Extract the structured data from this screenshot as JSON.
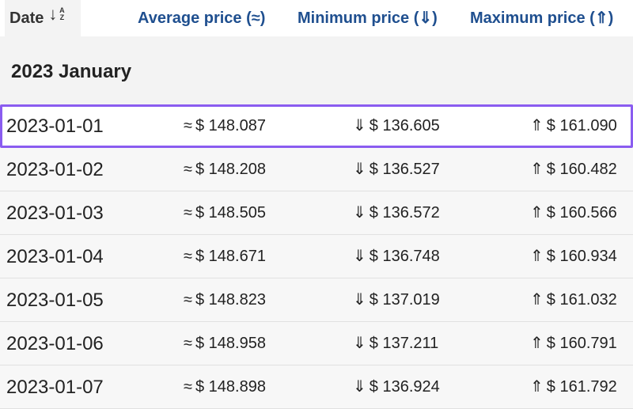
{
  "header": {
    "date_label": "Date",
    "sort_icon": "sort-az-icon",
    "sort_az_text": "A Z",
    "avg_label": "Average price (≈)",
    "min_label": "Minimum price (⇓)",
    "max_label": "Maximum price (⇑)"
  },
  "month_group": {
    "label": "2023 January"
  },
  "symbols": {
    "avg": "≈",
    "min": "⇓",
    "max": "⇑"
  },
  "rows": [
    {
      "date": "2023-01-01",
      "avg": "$ 148.087",
      "min": "$ 136.605",
      "max": "$ 161.090",
      "selected": true
    },
    {
      "date": "2023-01-02",
      "avg": "$ 148.208",
      "min": "$ 136.527",
      "max": "$ 160.482"
    },
    {
      "date": "2023-01-03",
      "avg": "$ 148.505",
      "min": "$ 136.572",
      "max": "$ 160.566"
    },
    {
      "date": "2023-01-04",
      "avg": "$ 148.671",
      "min": "$ 136.748",
      "max": "$ 160.934"
    },
    {
      "date": "2023-01-05",
      "avg": "$ 148.823",
      "min": "$ 137.019",
      "max": "$ 161.032"
    },
    {
      "date": "2023-01-06",
      "avg": "$ 148.958",
      "min": "$ 137.211",
      "max": "$ 160.791"
    },
    {
      "date": "2023-01-07",
      "avg": "$ 148.898",
      "min": "$ 136.924",
      "max": "$ 161.792"
    }
  ],
  "colors": {
    "header_link": "#1f4f8f",
    "selected_border": "#8a5cf0"
  }
}
